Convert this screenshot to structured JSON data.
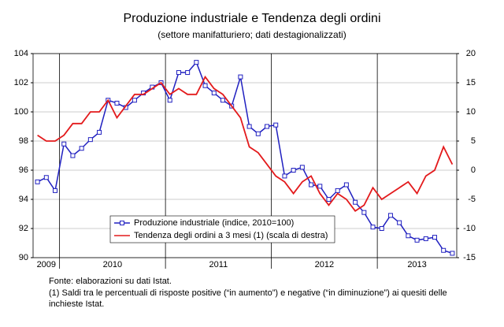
{
  "chart_data": {
    "type": "line",
    "title": "Produzione industriale e Tendenza degli ordini",
    "subtitle": "(settore manifatturiero; dati destagionalizzati)",
    "years": [
      "2009",
      "2010",
      "2011",
      "2012",
      "2013"
    ],
    "series": [
      {
        "name": "Produzione industriale (indice, 2010=100)",
        "color": "#2020c0",
        "marker": "square",
        "values": [
          95.2,
          95.5,
          94.6,
          97.8,
          97,
          97.5,
          98.1,
          98.6,
          100.8,
          100.6,
          100.3,
          100.8,
          101.3,
          101.7,
          102,
          100.8,
          102.7,
          102.7,
          103.4,
          101.8,
          101.3,
          100.8,
          100.4,
          102.4,
          99,
          98.5,
          99,
          99.1,
          95.6,
          96,
          96.2,
          95,
          94.9,
          94,
          94.6,
          95,
          93.8,
          93.1,
          92.1,
          92,
          92.9,
          92.4,
          91.5,
          91.2,
          91.3,
          91.4,
          90.5,
          90.3
        ]
      },
      {
        "name": "Tendenza degli ordini a 3 mesi (1) (scala di destra)",
        "color": "#e31a1c",
        "axis": "y2",
        "values": [
          6,
          5,
          5,
          6,
          8,
          8,
          10,
          10,
          12,
          9,
          11,
          13,
          13,
          14,
          15,
          13,
          14,
          13,
          13,
          16,
          14,
          13,
          11,
          9,
          4,
          3,
          1,
          -1,
          -2,
          -4,
          -2,
          -1,
          -4,
          -6,
          -4,
          -5,
          -7,
          -6,
          -3,
          -5,
          -4,
          -3,
          -2,
          -4,
          -1,
          0,
          4,
          1
        ]
      }
    ],
    "ylim": [
      90,
      104
    ],
    "yticks": [
      90,
      92,
      94,
      96,
      98,
      100,
      102,
      104
    ],
    "y2lim": [
      -15,
      20
    ],
    "y2ticks": [
      -15,
      -10,
      -5,
      0,
      5,
      10,
      15,
      20
    ],
    "grid": true,
    "notes": [
      "Fonte: elaborazioni su dati Istat.",
      "(1) Saldi tra le percentuali di risposte positive (“in aumento”) e negative (“in diminuzione”) ai quesiti delle",
      "inchieste Istat."
    ]
  }
}
